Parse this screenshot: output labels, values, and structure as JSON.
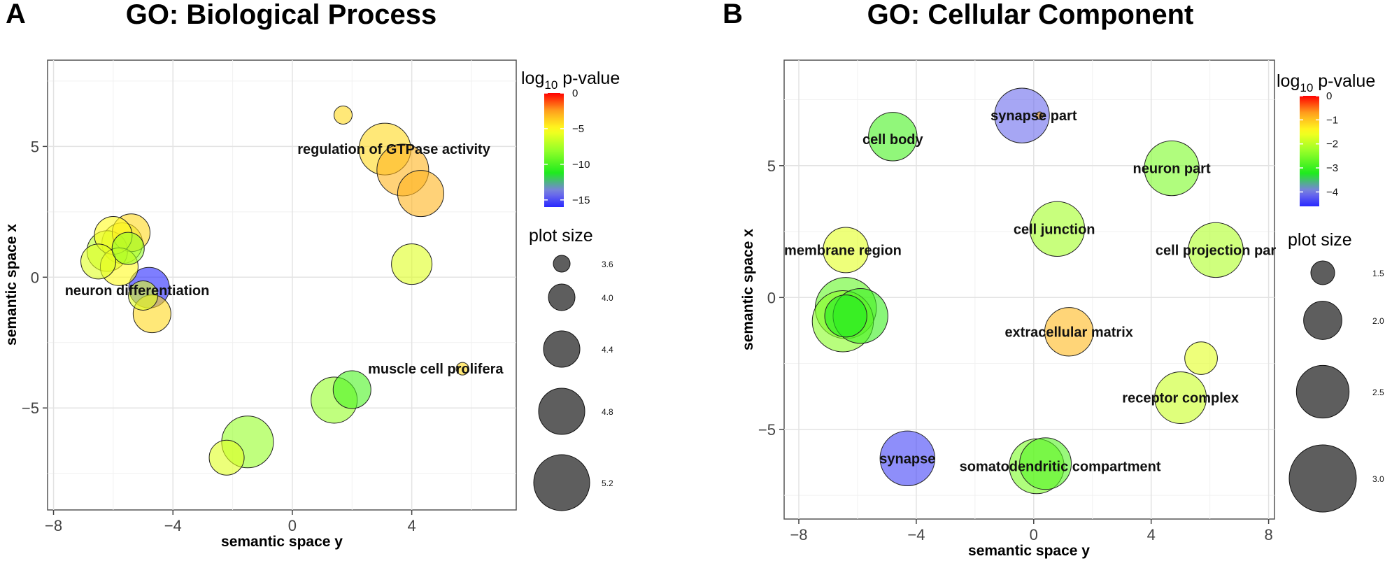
{
  "chart_data": [
    {
      "type": "scatter",
      "panel_letter": "A",
      "title": "GO: Biological Process",
      "xlabel": "semantic space y",
      "ylabel": "semantic space x",
      "xlim": [
        -8.2,
        7.5
      ],
      "ylim": [
        -8.9,
        8.3
      ],
      "xticks": [
        -8,
        -4,
        0,
        4
      ],
      "xtick_labels": [
        "−8",
        "−4",
        "0",
        "4"
      ],
      "yticks": [
        -5,
        0,
        5
      ],
      "ytick_labels": [
        "−5",
        "0",
        "5"
      ],
      "grid": true,
      "color_legend": {
        "title_base": "log",
        "title_sub": "10",
        "title_rest": " p-value",
        "min": -16,
        "max": 0,
        "ticks": [
          0,
          -5,
          -10,
          -15
        ],
        "tick_labels": [
          "0",
          "−5",
          "−10",
          "−15"
        ]
      },
      "size_legend": {
        "title": "plot size",
        "min": 3.6,
        "max": 5.2,
        "values": [
          3.6,
          4.0,
          4.4,
          4.8,
          5.2
        ],
        "labels": [
          "3.6",
          "4.0",
          "4.4",
          "4.8",
          "5.2"
        ]
      },
      "points": [
        {
          "x": 1.7,
          "y": 6.2,
          "size": 3.8,
          "logp": -4
        },
        {
          "x": 3.1,
          "y": 4.9,
          "size": 5.0,
          "logp": -4
        },
        {
          "x": 3.7,
          "y": 4.1,
          "size": 5.0,
          "logp": -3
        },
        {
          "x": 4.3,
          "y": 3.2,
          "size": 4.8,
          "logp": -3
        },
        {
          "x": 4.0,
          "y": 0.5,
          "size": 4.6,
          "logp": -6
        },
        {
          "x": 5.7,
          "y": -3.5,
          "size": 3.6,
          "logp": -4
        },
        {
          "x": 1.4,
          "y": -4.7,
          "size": 4.8,
          "logp": -8
        },
        {
          "x": 2.0,
          "y": -4.3,
          "size": 4.5,
          "logp": -10
        },
        {
          "x": -1.5,
          "y": -6.3,
          "size": 5.0,
          "logp": -8
        },
        {
          "x": -2.2,
          "y": -6.9,
          "size": 4.4,
          "logp": -6
        },
        {
          "x": -4.8,
          "y": -0.4,
          "size": 4.6,
          "logp": -16
        },
        {
          "x": -4.7,
          "y": -1.4,
          "size": 4.5,
          "logp": -4
        },
        {
          "x": -5.0,
          "y": -0.7,
          "size": 4.2,
          "logp": -6
        },
        {
          "x": -5.4,
          "y": 1.7,
          "size": 4.5,
          "logp": -4
        },
        {
          "x": -5.7,
          "y": 1.3,
          "size": 4.6,
          "logp": -6
        },
        {
          "x": -6.0,
          "y": 1.6,
          "size": 4.5,
          "logp": -5
        },
        {
          "x": -6.2,
          "y": 1.0,
          "size": 4.6,
          "logp": -7
        },
        {
          "x": -6.5,
          "y": 0.6,
          "size": 4.4,
          "logp": -6
        },
        {
          "x": -5.8,
          "y": 0.4,
          "size": 4.5,
          "logp": -5
        },
        {
          "x": -5.5,
          "y": 1.1,
          "size": 4.3,
          "logp": -8
        }
      ],
      "labels": [
        {
          "text": "regulation of GTPase activity",
          "x": 3.4,
          "y": 4.9
        },
        {
          "text": "neuron differentiation",
          "x": -5.2,
          "y": -0.5
        },
        {
          "text": "muscle cell prolifera",
          "x": 4.8,
          "y": -3.5
        }
      ]
    },
    {
      "type": "scatter",
      "panel_letter": "B",
      "title": "GO: Cellular Component",
      "xlabel": "semantic space y",
      "ylabel": "semantic space x",
      "xlim": [
        -8.5,
        8.2
      ],
      "ylim": [
        -8.4,
        9.0
      ],
      "xticks": [
        -8,
        -4,
        0,
        4,
        8
      ],
      "xtick_labels": [
        "−8",
        "−4",
        "0",
        "4",
        "8"
      ],
      "yticks": [
        -5,
        0,
        5
      ],
      "ytick_labels": [
        "−5",
        "0",
        "5"
      ],
      "grid": true,
      "color_legend": {
        "title_base": "log",
        "title_sub": "10",
        "title_rest": " p-value",
        "min": -4.6,
        "max": 0,
        "ticks": [
          0,
          -1,
          -2,
          -3,
          -4
        ],
        "tick_labels": [
          "0",
          "−1",
          "−2",
          "−3",
          "−4"
        ]
      },
      "size_legend": {
        "title": "plot size",
        "min": 1.5,
        "max": 3.0,
        "values": [
          1.5,
          2.0,
          2.5,
          3.0
        ],
        "labels": [
          "1.5",
          "2.0",
          "2.5",
          "3.0"
        ]
      },
      "points": [
        {
          "x": -0.4,
          "y": 6.9,
          "size": 2.7,
          "logp": -4.1
        },
        {
          "x": 0.2,
          "y": 6.9,
          "size": 1.2,
          "logp": -0.8
        },
        {
          "x": -4.8,
          "y": 6.1,
          "size": 2.5,
          "logp": -2.9
        },
        {
          "x": 4.7,
          "y": 4.9,
          "size": 2.7,
          "logp": -2.5
        },
        {
          "x": 0.8,
          "y": 2.6,
          "size": 2.7,
          "logp": -2.2
        },
        {
          "x": 6.2,
          "y": 1.8,
          "size": 2.7,
          "logp": -2.1
        },
        {
          "x": -6.4,
          "y": 1.8,
          "size": 2.4,
          "logp": -1.7
        },
        {
          "x": -6.4,
          "y": -0.4,
          "size": 2.9,
          "logp": -2.7
        },
        {
          "x": -5.9,
          "y": -0.7,
          "size": 2.7,
          "logp": -3.0
        },
        {
          "x": -6.5,
          "y": -0.9,
          "size": 2.9,
          "logp": -2.4
        },
        {
          "x": -6.4,
          "y": -0.7,
          "size": 2.3,
          "logp": -3.2
        },
        {
          "x": 1.2,
          "y": -1.3,
          "size": 2.5,
          "logp": -0.9
        },
        {
          "x": 5.7,
          "y": -2.3,
          "size": 2.0,
          "logp": -1.7
        },
        {
          "x": 5.0,
          "y": -3.8,
          "size": 2.6,
          "logp": -1.9
        },
        {
          "x": -4.3,
          "y": -6.1,
          "size": 2.7,
          "logp": -4.4
        },
        {
          "x": 0.1,
          "y": -6.4,
          "size": 2.7,
          "logp": -2.5
        },
        {
          "x": 0.4,
          "y": -6.3,
          "size": 2.6,
          "logp": -2.8
        }
      ],
      "labels": [
        {
          "text": "synapse part",
          "x": 0.0,
          "y": 6.9
        },
        {
          "text": "cell body",
          "x": -4.8,
          "y": 6.0
        },
        {
          "text": "neuron part",
          "x": 4.7,
          "y": 4.9
        },
        {
          "text": "cell junction",
          "x": 0.7,
          "y": 2.6
        },
        {
          "text": "cell projection par",
          "x": 6.2,
          "y": 1.8
        },
        {
          "text": "membrane region",
          "x": -6.5,
          "y": 1.8
        },
        {
          "text": "extracellular matrix",
          "x": 1.2,
          "y": -1.3
        },
        {
          "text": "receptor complex",
          "x": 5.0,
          "y": -3.8
        },
        {
          "text": "synapse",
          "x": -4.3,
          "y": -6.1
        },
        {
          "text": "somatodendritic compartment",
          "x": 0.9,
          "y": -6.4
        }
      ]
    }
  ]
}
